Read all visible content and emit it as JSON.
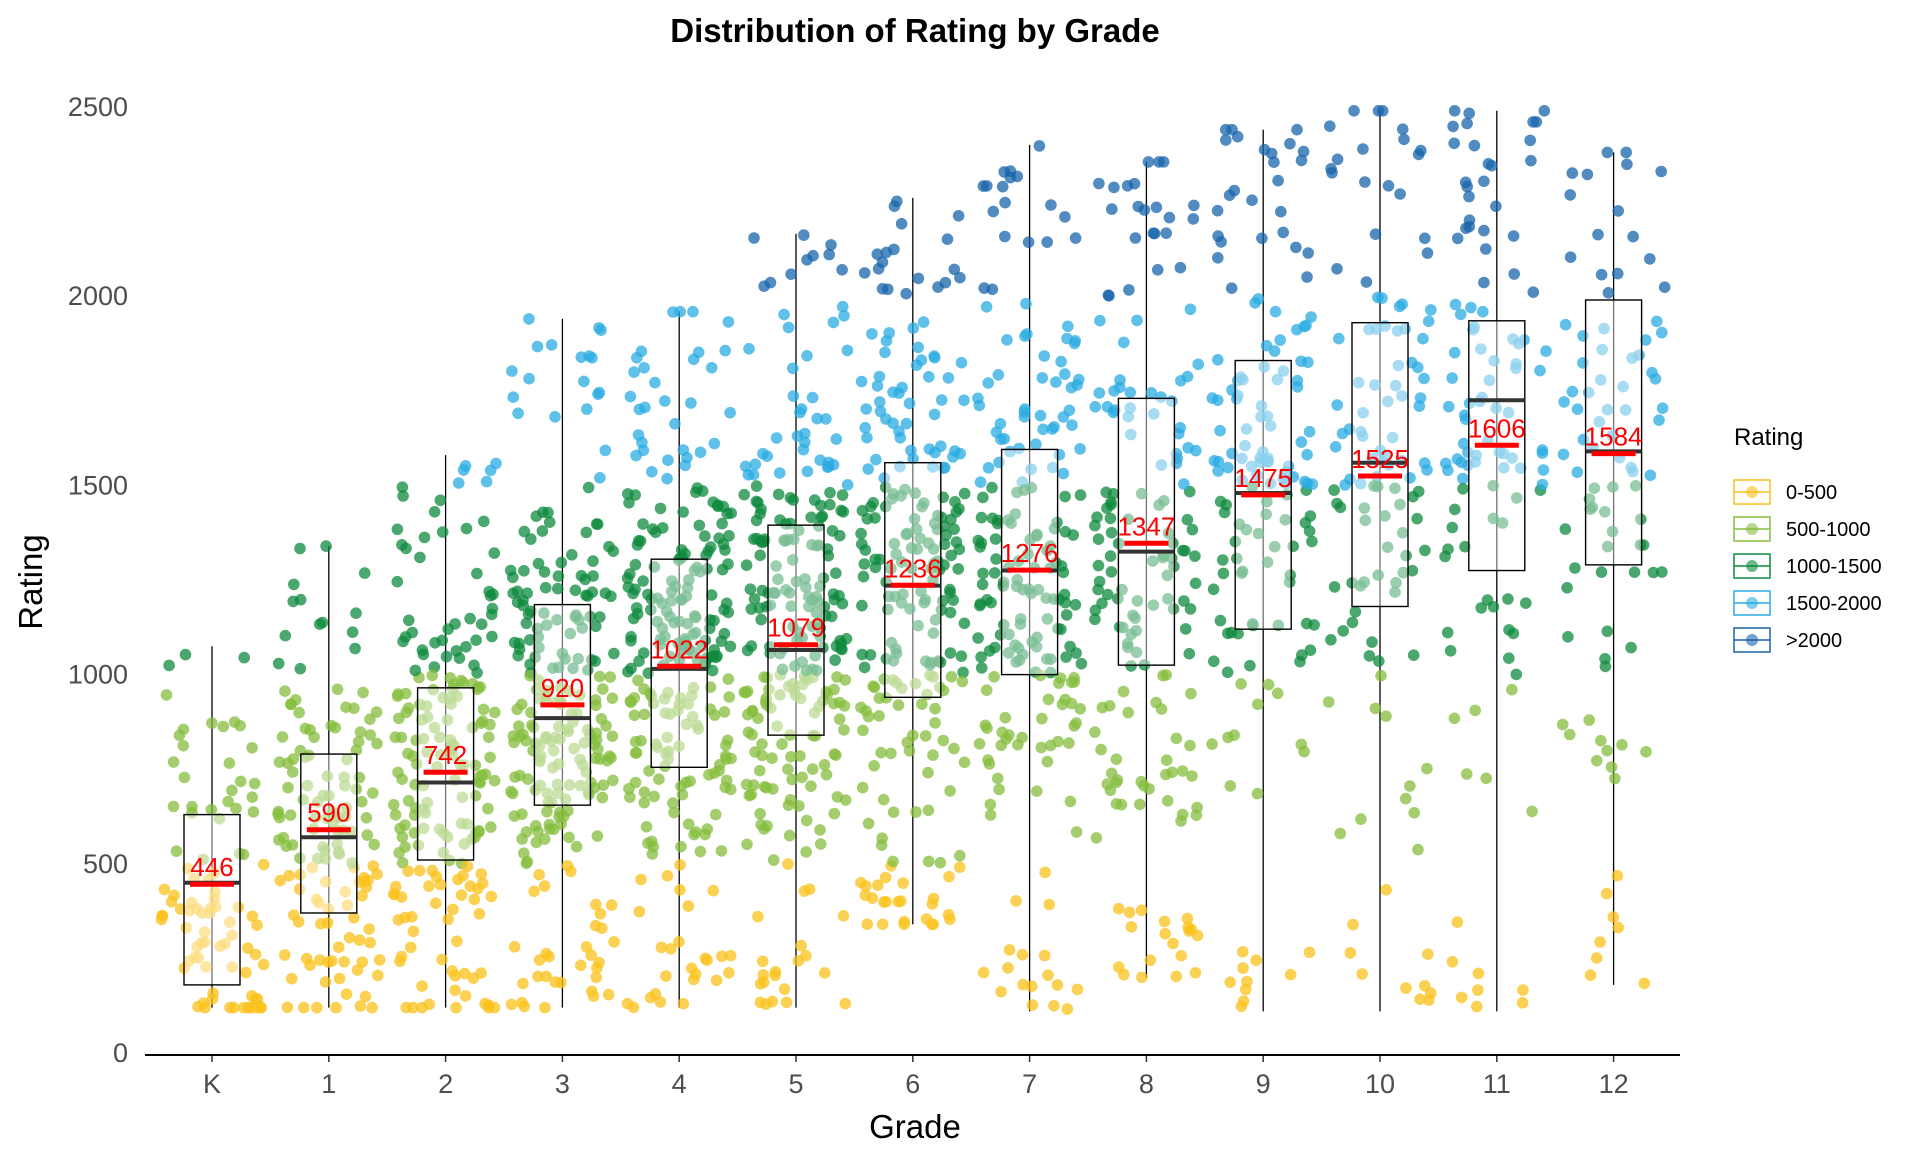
{
  "chart_data": {
    "type": "box-jitter",
    "title": "Distribution of Rating by Grade",
    "xlabel": "Grade",
    "ylabel": "Rating",
    "ylim": [
      0,
      2500
    ],
    "yticks": [
      0,
      500,
      1000,
      1500,
      2000,
      2500
    ],
    "grid": false,
    "legend": {
      "title": "Rating",
      "placement": "right",
      "items": [
        {
          "label": "0-500",
          "color": "#F9C21B"
        },
        {
          "label": "500-1000",
          "color": "#86BE3E"
        },
        {
          "label": "1000-1500",
          "color": "#0E8A3E"
        },
        {
          "label": "1500-2000",
          "color": "#2AABE2"
        },
        {
          "label": ">2000",
          "color": "#1764AB"
        }
      ]
    },
    "categories": [
      "K",
      "1",
      "2",
      "3",
      "4",
      "5",
      "6",
      "7",
      "8",
      "9",
      "10",
      "11",
      "12"
    ],
    "boxes": [
      {
        "grade": "K",
        "whisker_low": 120,
        "q1": 180,
        "median": 450,
        "q3": 630,
        "whisker_high": 1075,
        "mean": 446,
        "mean_label": "446"
      },
      {
        "grade": "1",
        "whisker_low": 120,
        "q1": 370,
        "median": 570,
        "q3": 790,
        "whisker_high": 1340,
        "mean": 590,
        "mean_label": "590"
      },
      {
        "grade": "2",
        "whisker_low": 120,
        "q1": 510,
        "median": 715,
        "q3": 965,
        "whisker_high": 1580,
        "mean": 742,
        "mean_label": "742"
      },
      {
        "grade": "3",
        "whisker_low": 120,
        "q1": 655,
        "median": 885,
        "q3": 1185,
        "whisker_high": 1940,
        "mean": 920,
        "mean_label": "920"
      },
      {
        "grade": "4",
        "whisker_low": 120,
        "q1": 755,
        "median": 1015,
        "q3": 1305,
        "whisker_high": 1960,
        "mean": 1022,
        "mean_label": "1022"
      },
      {
        "grade": "5",
        "whisker_low": 120,
        "q1": 840,
        "median": 1065,
        "q3": 1395,
        "whisker_high": 2165,
        "mean": 1079,
        "mean_label": "1079"
      },
      {
        "grade": "6",
        "whisker_low": 340,
        "q1": 940,
        "median": 1235,
        "q3": 1560,
        "whisker_high": 2260,
        "mean": 1236,
        "mean_label": "1236"
      },
      {
        "grade": "7",
        "whisker_low": 110,
        "q1": 1000,
        "median": 1275,
        "q3": 1595,
        "whisker_high": 2400,
        "mean": 1276,
        "mean_label": "1276"
      },
      {
        "grade": "8",
        "whisker_low": 200,
        "q1": 1025,
        "median": 1325,
        "q3": 1730,
        "whisker_high": 2355,
        "mean": 1347,
        "mean_label": "1347"
      },
      {
        "grade": "9",
        "whisker_low": 110,
        "q1": 1120,
        "median": 1480,
        "q3": 1830,
        "whisker_high": 2440,
        "mean": 1475,
        "mean_label": "1475"
      },
      {
        "grade": "10",
        "whisker_low": 110,
        "q1": 1180,
        "median": 1560,
        "q3": 1930,
        "whisker_high": 2490,
        "mean": 1525,
        "mean_label": "1525"
      },
      {
        "grade": "11",
        "whisker_low": 110,
        "q1": 1275,
        "median": 1725,
        "q3": 1935,
        "whisker_high": 2490,
        "mean": 1606,
        "mean_label": "1606"
      },
      {
        "grade": "12",
        "whisker_low": 180,
        "q1": 1290,
        "median": 1590,
        "q3": 1990,
        "whisker_high": 2380,
        "mean": 1584,
        "mean_label": "1584"
      }
    ],
    "points_per_grade": [
      90,
      140,
      200,
      240,
      260,
      260,
      240,
      210,
      170,
      150,
      120,
      110,
      90
    ]
  }
}
